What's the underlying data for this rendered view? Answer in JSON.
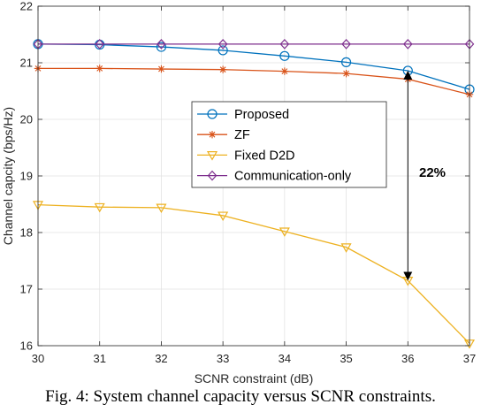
{
  "chart_data": {
    "type": "line",
    "xlabel": "SCNR constraint (dB)",
    "ylabel": "Channel capcity (bps/Hz)",
    "x": [
      30,
      31,
      32,
      33,
      34,
      35,
      36,
      37
    ],
    "xlim": [
      30,
      37
    ],
    "ylim": [
      16,
      22
    ],
    "xticks": [
      30,
      31,
      32,
      33,
      34,
      35,
      36,
      37
    ],
    "yticks": [
      16,
      17,
      18,
      19,
      20,
      21,
      22
    ],
    "grid": true,
    "legend_position": "center-right",
    "series": [
      {
        "name": "Proposed",
        "color": "#0072BD",
        "marker": "circle",
        "values": [
          21.33,
          21.32,
          21.28,
          21.22,
          21.12,
          21.01,
          20.86,
          20.53
        ]
      },
      {
        "name": "ZF",
        "color": "#D95319",
        "marker": "asterisk",
        "values": [
          20.9,
          20.9,
          20.89,
          20.88,
          20.85,
          20.81,
          20.71,
          20.44
        ]
      },
      {
        "name": "Fixed D2D",
        "color": "#EDB120",
        "marker": "triangle-down",
        "values": [
          18.49,
          18.45,
          18.44,
          18.3,
          18.02,
          17.74,
          17.15,
          16.04
        ]
      },
      {
        "name": "Communication-only",
        "color": "#7E2F8E",
        "marker": "diamond",
        "values": [
          21.33,
          21.33,
          21.33,
          21.33,
          21.33,
          21.33,
          21.33,
          21.33
        ]
      }
    ],
    "annotations": [
      {
        "text": "22%",
        "type": "double-arrow",
        "x": 36,
        "y_from": 20.86,
        "y_to": 17.15
      }
    ]
  },
  "caption": "Fig. 4: System channel capacity versus SCNR constraints."
}
